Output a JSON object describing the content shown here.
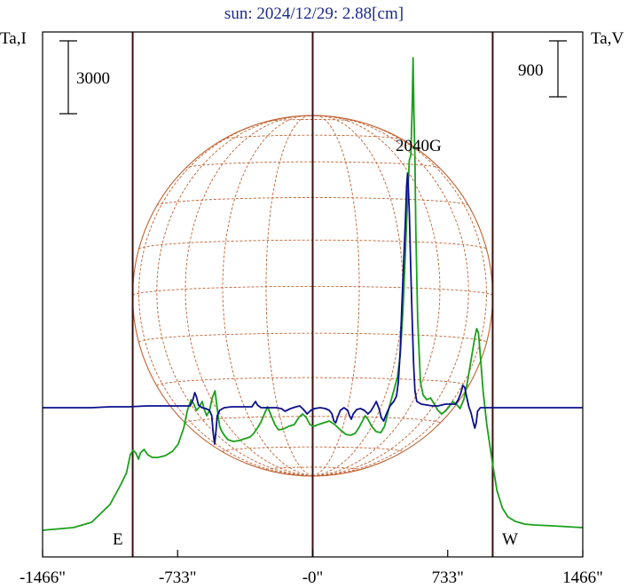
{
  "chart_data": {
    "type": "line",
    "title": "sun: 2024/12/29: 2.88[cm]",
    "left_axis_label": "Ta,I",
    "right_axis_label": "Ta,V",
    "scale_bar_left": "3000",
    "scale_bar_right": "900",
    "peak_annotation": "2040G",
    "limb_east_label": "E",
    "limb_west_label": "W",
    "x_ticks": [
      {
        "value": -1466,
        "label": "-1466\""
      },
      {
        "value": -733,
        "label": "-733\""
      },
      {
        "value": 0,
        "label": "-0\""
      },
      {
        "value": 733,
        "label": "733\""
      },
      {
        "value": 1466,
        "label": "1466\""
      }
    ],
    "xlim": [
      -1466,
      1466
    ],
    "limb_positions_arcsec": [
      -977,
      977
    ],
    "center_line_arcsec": 0,
    "grid": false,
    "colors": {
      "intensity": "#1aa01a",
      "polarization": "#0a108c",
      "disk": "#c06030",
      "frame": "#000000",
      "vertical_lines": "#3a1010",
      "title": "#1a2a8a"
    },
    "series": [
      {
        "color": "#1aa01a",
        "points": [
          [
            -1466,
            597
          ],
          [
            -1300,
            594
          ],
          [
            -1200,
            588
          ],
          [
            -1100,
            568
          ],
          [
            -1040,
            545
          ],
          [
            -1010,
            532
          ],
          [
            -990,
            512
          ],
          [
            -975,
            507
          ],
          [
            -960,
            510
          ],
          [
            -945,
            517
          ],
          [
            -935,
            510
          ],
          [
            -915,
            506
          ],
          [
            -895,
            512
          ],
          [
            -870,
            515
          ],
          [
            -840,
            515
          ],
          [
            -800,
            513
          ],
          [
            -760,
            508
          ],
          [
            -730,
            500
          ],
          [
            -700,
            482
          ],
          [
            -680,
            462
          ],
          [
            -660,
            450
          ],
          [
            -645,
            455
          ],
          [
            -630,
            462
          ],
          [
            -615,
            458
          ],
          [
            -600,
            452
          ],
          [
            -590,
            460
          ],
          [
            -575,
            468
          ],
          [
            -560,
            462
          ],
          [
            -545,
            448
          ],
          [
            -530,
            440
          ],
          [
            -518,
            460
          ],
          [
            -505,
            480
          ],
          [
            -495,
            485
          ],
          [
            -480,
            490
          ],
          [
            -460,
            495
          ],
          [
            -430,
            497
          ],
          [
            -400,
            496
          ],
          [
            -370,
            494
          ],
          [
            -340,
            492
          ],
          [
            -320,
            488
          ],
          [
            -300,
            482
          ],
          [
            -280,
            475
          ],
          [
            -260,
            465
          ],
          [
            -245,
            458
          ],
          [
            -225,
            468
          ],
          [
            -205,
            478
          ],
          [
            -185,
            484
          ],
          [
            -160,
            483
          ],
          [
            -130,
            480
          ],
          [
            -100,
            478
          ],
          [
            -75,
            470
          ],
          [
            -55,
            466
          ],
          [
            -35,
            470
          ],
          [
            -15,
            478
          ],
          [
            5,
            480
          ],
          [
            30,
            478
          ],
          [
            60,
            476
          ],
          [
            90,
            474
          ],
          [
            120,
            478
          ],
          [
            150,
            484
          ],
          [
            180,
            489
          ],
          [
            205,
            490
          ],
          [
            230,
            488
          ],
          [
            250,
            482
          ],
          [
            270,
            474
          ],
          [
            285,
            468
          ],
          [
            300,
            472
          ],
          [
            320,
            480
          ],
          [
            345,
            486
          ],
          [
            370,
            487
          ],
          [
            390,
            480
          ],
          [
            405,
            468
          ],
          [
            420,
            455
          ],
          [
            440,
            440
          ],
          [
            460,
            425
          ],
          [
            475,
            400
          ],
          [
            490,
            350
          ],
          [
            500,
            300
          ],
          [
            510,
            250
          ],
          [
            518,
            210
          ],
          [
            525,
            180
          ],
          [
            533,
            175
          ],
          [
            540,
            120
          ],
          [
            545,
            65
          ],
          [
            550,
            130
          ],
          [
            555,
            180
          ],
          [
            560,
            260
          ],
          [
            570,
            360
          ],
          [
            585,
            430
          ],
          [
            600,
            445
          ],
          [
            620,
            450
          ],
          [
            640,
            448
          ],
          [
            660,
            455
          ],
          [
            680,
            462
          ],
          [
            700,
            466
          ],
          [
            720,
            463
          ],
          [
            740,
            458
          ],
          [
            760,
            452
          ],
          [
            780,
            455
          ],
          [
            800,
            460
          ],
          [
            820,
            450
          ],
          [
            840,
            430
          ],
          [
            860,
            405
          ],
          [
            880,
            380
          ],
          [
            890,
            370
          ],
          [
            900,
            375
          ],
          [
            910,
            400
          ],
          [
            925,
            440
          ],
          [
            945,
            478
          ],
          [
            975,
            520
          ],
          [
            1000,
            552
          ],
          [
            1030,
            572
          ],
          [
            1060,
            582
          ],
          [
            1100,
            587
          ],
          [
            1150,
            590
          ],
          [
            1200,
            591
          ],
          [
            1300,
            592
          ],
          [
            1466,
            594
          ]
        ]
      },
      {
        "color": "#0a108c",
        "points": [
          [
            -1466,
            459
          ],
          [
            -1400,
            459
          ],
          [
            -1300,
            459
          ],
          [
            -1200,
            459
          ],
          [
            -1100,
            458
          ],
          [
            -1000,
            458
          ],
          [
            -900,
            457
          ],
          [
            -800,
            457
          ],
          [
            -700,
            457
          ],
          [
            -665,
            457
          ],
          [
            -650,
            450
          ],
          [
            -640,
            442
          ],
          [
            -630,
            447
          ],
          [
            -620,
            456
          ],
          [
            -600,
            459
          ],
          [
            -580,
            460
          ],
          [
            -560,
            462
          ],
          [
            -548,
            468
          ],
          [
            -540,
            487
          ],
          [
            -532,
            500
          ],
          [
            -525,
            485
          ],
          [
            -518,
            468
          ],
          [
            -505,
            462
          ],
          [
            -480,
            459
          ],
          [
            -440,
            458
          ],
          [
            -400,
            458
          ],
          [
            -360,
            458
          ],
          [
            -330,
            458
          ],
          [
            -320,
            455
          ],
          [
            -310,
            452
          ],
          [
            -300,
            456
          ],
          [
            -280,
            459
          ],
          [
            -250,
            459
          ],
          [
            -200,
            459
          ],
          [
            -170,
            460
          ],
          [
            -150,
            463
          ],
          [
            -120,
            460
          ],
          [
            -90,
            458
          ],
          [
            -70,
            457
          ],
          [
            -50,
            461
          ],
          [
            -30,
            466
          ],
          [
            -10,
            462
          ],
          [
            10,
            460
          ],
          [
            40,
            459
          ],
          [
            70,
            460
          ],
          [
            90,
            462
          ],
          [
            105,
            466
          ],
          [
            115,
            474
          ],
          [
            125,
            476
          ],
          [
            135,
            470
          ],
          [
            150,
            462
          ],
          [
            170,
            459
          ],
          [
            190,
            462
          ],
          [
            200,
            468
          ],
          [
            210,
            472
          ],
          [
            220,
            466
          ],
          [
            240,
            461
          ],
          [
            260,
            460
          ],
          [
            280,
            462
          ],
          [
            300,
            466
          ],
          [
            315,
            463
          ],
          [
            330,
            458
          ],
          [
            345,
            452
          ],
          [
            360,
            460
          ],
          [
            372,
            470
          ],
          [
            385,
            474
          ],
          [
            400,
            466
          ],
          [
            420,
            457
          ],
          [
            440,
            452
          ],
          [
            455,
            446
          ],
          [
            465,
            430
          ],
          [
            475,
            395
          ],
          [
            485,
            340
          ],
          [
            495,
            290
          ],
          [
            503,
            250
          ],
          [
            510,
            210
          ],
          [
            515,
            195
          ],
          [
            519,
            210
          ],
          [
            525,
            240
          ],
          [
            532,
            300
          ],
          [
            540,
            360
          ],
          [
            548,
            410
          ],
          [
            555,
            440
          ],
          [
            565,
            452
          ],
          [
            590,
            455
          ],
          [
            620,
            456
          ],
          [
            650,
            457
          ],
          [
            680,
            457
          ],
          [
            700,
            456
          ],
          [
            720,
            455
          ],
          [
            750,
            455
          ],
          [
            775,
            455
          ],
          [
            790,
            450
          ],
          [
            805,
            442
          ],
          [
            815,
            434
          ],
          [
            825,
            436
          ],
          [
            835,
            446
          ],
          [
            848,
            458
          ],
          [
            860,
            465
          ],
          [
            870,
            474
          ],
          [
            880,
            482
          ],
          [
            888,
            476
          ],
          [
            895,
            463
          ],
          [
            910,
            459
          ],
          [
            940,
            459
          ],
          [
            1000,
            459
          ],
          [
            1100,
            459
          ],
          [
            1200,
            459
          ],
          [
            1300,
            459
          ],
          [
            1400,
            459
          ],
          [
            1466,
            459
          ]
        ]
      }
    ]
  }
}
